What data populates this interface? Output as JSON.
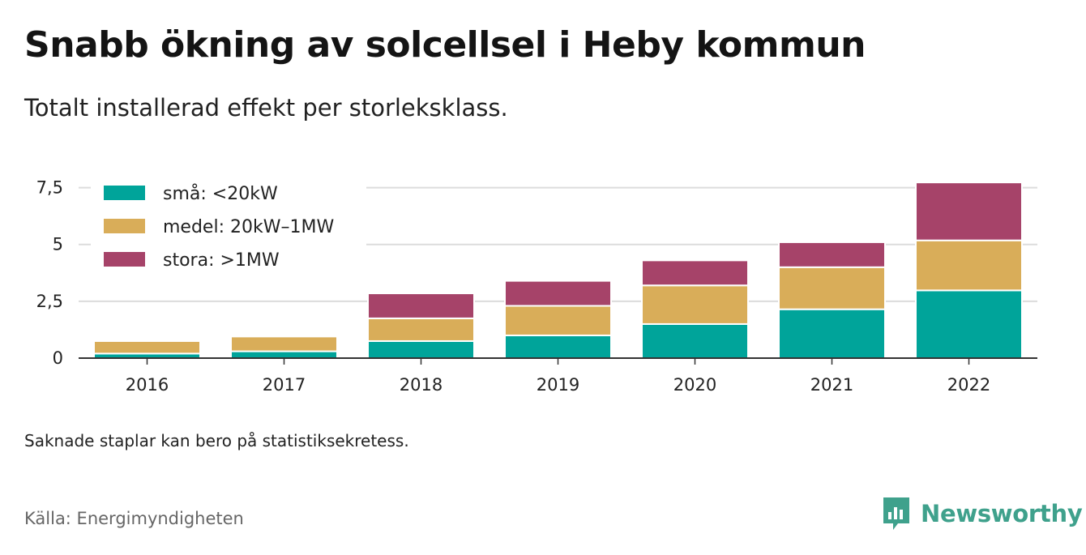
{
  "header": {
    "title": "Snabb ökning av solcellsel i Heby kommun",
    "subtitle": "Totalt installerad effekt per storleksklass."
  },
  "footer": {
    "note": "Saknade staplar kan bero på statistiksekretess.",
    "source": "Källa: Energimyndigheten",
    "brand": "Newsworthy"
  },
  "colors": {
    "small": "#00a49a",
    "medium": "#d9ad59",
    "large": "#a64369",
    "grid": "#dcdcdc",
    "axis": "#333333",
    "brand": "#3fa18c"
  },
  "chart_data": {
    "type": "bar",
    "stacked": true,
    "categories": [
      "2016",
      "2017",
      "2018",
      "2019",
      "2020",
      "2021",
      "2022"
    ],
    "series": [
      {
        "name": "små: <20kW",
        "color": "#00a49a",
        "values": [
          0.2,
          0.3,
          0.75,
          1.0,
          1.5,
          2.15,
          2.98
        ]
      },
      {
        "name": "medel: 20kW–1MW",
        "color": "#d9ad59",
        "values": [
          0.55,
          0.65,
          1.0,
          1.3,
          1.7,
          1.85,
          2.2
        ]
      },
      {
        "name": "stora: >1MW",
        "color": "#a64369",
        "values": [
          0,
          0,
          1.1,
          1.1,
          1.1,
          1.1,
          2.55
        ]
      }
    ],
    "y_ticks": [
      0,
      2.5,
      5,
      7.5
    ],
    "y_tick_labels": [
      "0",
      "2,5",
      "5",
      "7,5"
    ],
    "ylim": [
      0,
      7.7
    ],
    "grid": true,
    "legend_position": "top-left"
  }
}
